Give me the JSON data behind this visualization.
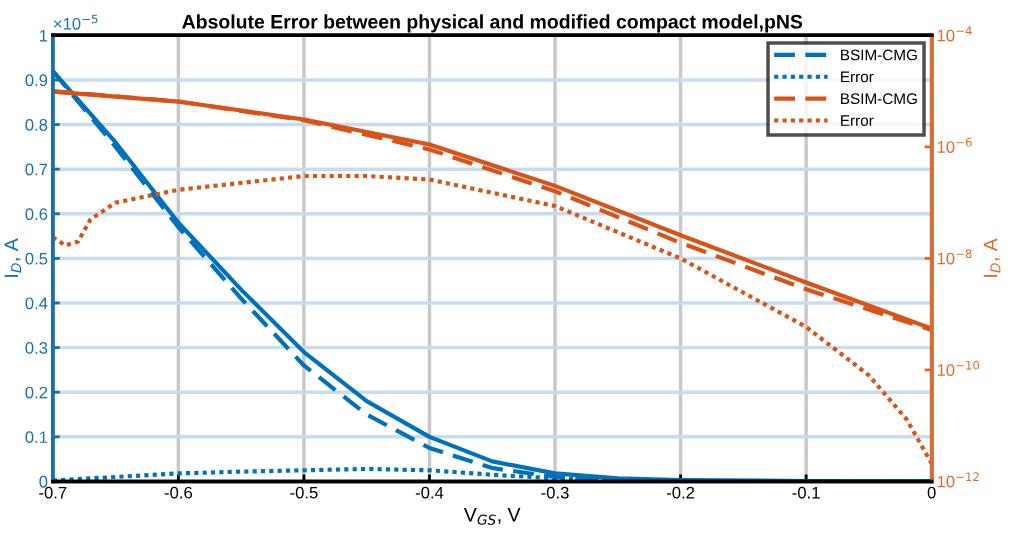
{
  "chart_data": {
    "type": "line",
    "title": "Absolute Error between physical and modified compact model,pNS",
    "xlabel": "V$_{GS}$, V",
    "ylabel": "I$_{D}$, A",
    "y2label": "I$_{D}$, A",
    "annotations": [
      "×10$^{−5}$"
    ],
    "xlim": [
      -0.7,
      0
    ],
    "xticks": [
      -0.7,
      -0.6,
      -0.5,
      -0.4,
      -0.3,
      -0.2,
      -0.1,
      0
    ],
    "ylim": [
      0,
      1
    ],
    "yticks": [
      0,
      0.1,
      0.2,
      0.3,
      0.4,
      0.5,
      0.6,
      0.7,
      0.8,
      0.9,
      1
    ],
    "y2lim": [
      1e-12,
      0.0001
    ],
    "y2ticks": [
      {
        "value": 1e-12,
        "label": "10$^{−12}$"
      },
      {
        "value": 1e-10,
        "label": "10$^{−10}$"
      },
      {
        "value": 1e-08,
        "label": "10$^{−8}$"
      },
      {
        "value": 1e-06,
        "label": "10$^{−6}$"
      },
      {
        "value": 0.0001,
        "label": "10$^{−4}$"
      }
    ],
    "log": "y2",
    "grid": true,
    "legend": "top right",
    "marker": "none",
    "series": [
      {
        "color": "#0072bd",
        "line_style": "solid",
        "x": [
          -0.7,
          -0.65,
          -0.6,
          -0.55,
          -0.5,
          -0.45,
          -0.4,
          -0.35,
          -0.3,
          -0.25,
          -0.2,
          -0.1,
          0
        ],
        "values": [
          0.92,
          0.76,
          0.58,
          0.43,
          0.29,
          0.18,
          0.1,
          0.045,
          0.018,
          0.007,
          0.003,
          0.001,
          0
        ]
      },
      {
        "name": "BSIM-CMG",
        "color": "#0072bd",
        "line_style": "dashed",
        "x": [
          -0.7,
          -0.65,
          -0.6,
          -0.55,
          -0.5,
          -0.45,
          -0.4,
          -0.35,
          -0.3,
          -0.25,
          -0.2,
          -0.1,
          0
        ],
        "values": [
          0.92,
          0.75,
          0.57,
          0.41,
          0.26,
          0.15,
          0.075,
          0.03,
          0.01,
          0.003,
          0.001,
          0,
          0
        ]
      },
      {
        "name": "Error",
        "color": "#0072bd",
        "line_style": "dotted",
        "x": [
          -0.7,
          -0.65,
          -0.6,
          -0.55,
          -0.5,
          -0.45,
          -0.4,
          -0.35,
          -0.3,
          -0.25,
          -0.2,
          -0.1,
          0
        ],
        "values": [
          0.002,
          0.01,
          0.018,
          0.022,
          0.025,
          0.028,
          0.025,
          0.015,
          0.007,
          0.003,
          0.001,
          0,
          0
        ]
      },
      {
        "axis": "y2",
        "color": "#d95319",
        "line_style": "solid",
        "x": [
          -0.7,
          -0.6,
          -0.5,
          -0.4,
          -0.3,
          -0.2,
          -0.1,
          0
        ],
        "values": [
          9.8e-06,
          6.5e-06,
          3.1e-06,
          1.1e-06,
          2e-07,
          2.6e-08,
          3.7e-09,
          5.5e-10
        ]
      },
      {
        "name": "BSIM-CMG",
        "axis": "y2",
        "color": "#d95319",
        "line_style": "dashed",
        "x": [
          -0.7,
          -0.6,
          -0.5,
          -0.4,
          -0.3,
          -0.2,
          -0.1,
          0
        ],
        "values": [
          1e-05,
          6.5e-06,
          3e-06,
          9e-07,
          1.6e-07,
          1.9e-08,
          2.8e-09,
          5.2e-10
        ]
      },
      {
        "name": "Error",
        "axis": "y2",
        "color": "#d95319",
        "line_style": "dotted",
        "x": [
          -0.7,
          -0.69,
          -0.68,
          -0.67,
          -0.65,
          -0.6,
          -0.5,
          -0.45,
          -0.4,
          -0.3,
          -0.2,
          -0.1,
          -0.05,
          -0.02,
          0
        ],
        "values": [
          2.4e-08,
          1.7e-08,
          2e-08,
          5e-08,
          1e-07,
          1.7e-07,
          3e-07,
          3e-07,
          2.6e-07,
          8.7e-08,
          1e-08,
          5.9e-10,
          8e-11,
          1.3e-11,
          2.1e-12
        ]
      }
    ]
  }
}
